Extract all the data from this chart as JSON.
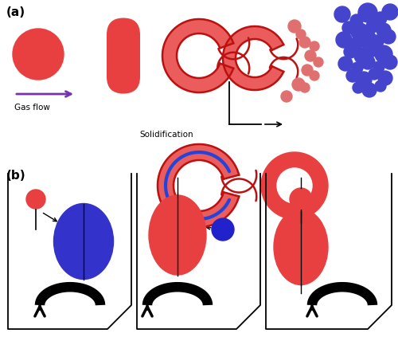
{
  "fig_width": 5.0,
  "fig_height": 4.28,
  "dpi": 100,
  "bg_color": "#ffffff",
  "red_fill": "#e84040",
  "red_dark": "#bb1111",
  "blue_fill": "#4444cc",
  "blue_light": "#7777cc",
  "purple": "#7733aa",
  "label_a": "(a)",
  "label_b": "(b)",
  "gas_flow": "Gas flow",
  "solidification": "Solidification"
}
